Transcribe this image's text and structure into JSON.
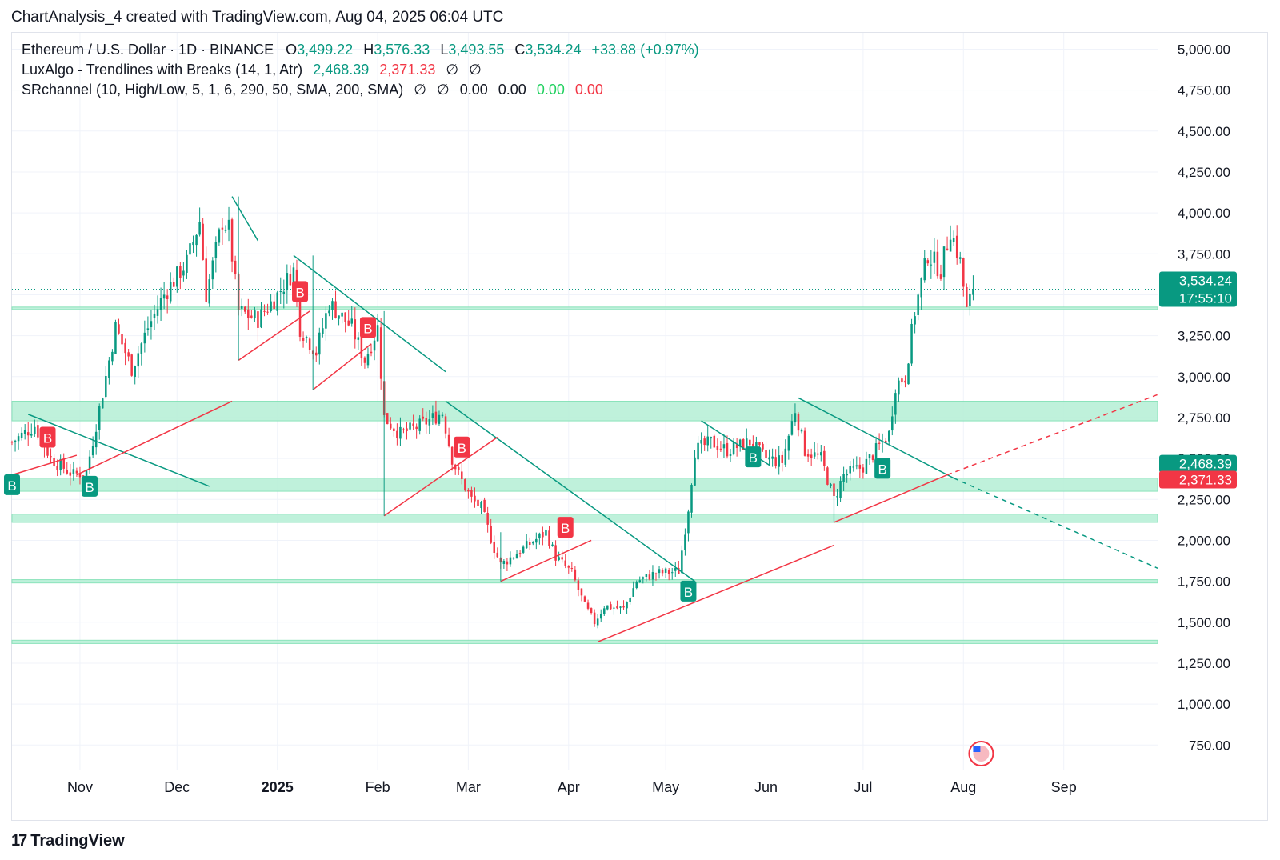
{
  "header": {
    "title": "ChartAnalysis_4 created with TradingView.com, Aug 04, 2025 06:04 UTC"
  },
  "legend": {
    "symbol": "Ethereum / U.S. Dollar · 1D · BINANCE",
    "o_label": "O",
    "o_value": "3,499.22",
    "h_label": "H",
    "h_value": "3,576.33",
    "l_label": "L",
    "l_value": "3,493.55",
    "c_label": "C",
    "c_value": "3,534.24",
    "change": "+33.88 (+0.97%)",
    "ind1_name": "LuxAlgo - Trendlines with Breaks (14, 1, Atr)",
    "ind1_v1": "2,468.39",
    "ind1_v2": "2,371.33",
    "ind1_v3": "∅",
    "ind1_v4": "∅",
    "ind2_name": "SRchannel (10, High/Low, 5, 1, 6, 290, 50, SMA, 200, SMA)",
    "ind2_v1": "∅",
    "ind2_v2": "∅",
    "ind2_v3": "0.00",
    "ind2_v4": "0.00",
    "ind2_v5": "0.00",
    "ind2_v6": "0.00"
  },
  "footer": {
    "brand": "TradingView",
    "logo_text": "17"
  },
  "colors": {
    "up": "#089981",
    "down": "#f23645",
    "zone": "#b9f0d8",
    "zone_edge": "#7fe0b4",
    "grid": "#f0f3fa",
    "axis_text": "#131722"
  },
  "chart_data": {
    "type": "candlestick",
    "symbol": "ETHUSD",
    "ylim": [
      600,
      5100
    ],
    "yticks": [
      750,
      1000,
      1250,
      1500,
      1750,
      2000,
      2250,
      2500,
      2750,
      3000,
      3250,
      3500,
      3750,
      4000,
      4250,
      4500,
      4750,
      5000
    ],
    "ytick_labels": [
      "750.00",
      "1,000.00",
      "1,250.00",
      "1,500.00",
      "1,750.00",
      "2,000.00",
      "2,250.00",
      "2,500.00",
      "2,750.00",
      "3,000.00",
      "3,250.00",
      "3,500.00",
      "3,750.00",
      "4,000.00",
      "4,250.00",
      "4,500.00",
      "4,750.00",
      "5,000.00"
    ],
    "xlim": [
      "2024-10-11",
      "2025-09-30"
    ],
    "xticks": [
      {
        "date": "2024-11-01",
        "label": "Nov",
        "bold": false
      },
      {
        "date": "2024-12-01",
        "label": "Dec",
        "bold": false
      },
      {
        "date": "2025-01-01",
        "label": "2025",
        "bold": true
      },
      {
        "date": "2025-02-01",
        "label": "Feb",
        "bold": false
      },
      {
        "date": "2025-03-01",
        "label": "Mar",
        "bold": false
      },
      {
        "date": "2025-04-01",
        "label": "Apr",
        "bold": false
      },
      {
        "date": "2025-05-01",
        "label": "May",
        "bold": false
      },
      {
        "date": "2025-06-01",
        "label": "Jun",
        "bold": false
      },
      {
        "date": "2025-07-01",
        "label": "Jul",
        "bold": false
      },
      {
        "date": "2025-08-01",
        "label": "Aug",
        "bold": false
      },
      {
        "date": "2025-09-01",
        "label": "Sep",
        "bold": false
      }
    ],
    "price_path": [
      [
        "2024-10-11",
        2600
      ],
      [
        "2024-10-18",
        2700
      ],
      [
        "2024-10-23",
        2500
      ],
      [
        "2024-10-30",
        2400
      ],
      [
        "2024-11-03",
        2420
      ],
      [
        "2024-11-08",
        2900
      ],
      [
        "2024-11-12",
        3300
      ],
      [
        "2024-11-17",
        3050
      ],
      [
        "2024-11-22",
        3300
      ],
      [
        "2024-11-27",
        3500
      ],
      [
        "2024-12-04",
        3700
      ],
      [
        "2024-12-08",
        3950
      ],
      [
        "2024-12-10",
        3500
      ],
      [
        "2024-12-15",
        3950
      ],
      [
        "2024-12-17",
        3900
      ],
      [
        "2024-12-20",
        3400
      ],
      [
        "2024-12-26",
        3350
      ],
      [
        "2025-01-01",
        3500
      ],
      [
        "2025-01-06",
        3650
      ],
      [
        "2025-01-08",
        3300
      ],
      [
        "2025-01-13",
        3150
      ],
      [
        "2025-01-17",
        3450
      ],
      [
        "2025-01-24",
        3300
      ],
      [
        "2025-01-28",
        3100
      ],
      [
        "2025-02-01",
        3300
      ],
      [
        "2025-02-03",
        2750
      ],
      [
        "2025-02-08",
        2650
      ],
      [
        "2025-02-14",
        2700
      ],
      [
        "2025-02-21",
        2780
      ],
      [
        "2025-02-24",
        2500
      ],
      [
        "2025-02-26",
        2400
      ],
      [
        "2025-03-02",
        2250
      ],
      [
        "2025-03-05",
        2200
      ],
      [
        "2025-03-09",
        1950
      ],
      [
        "2025-03-11",
        1850
      ],
      [
        "2025-03-18",
        1950
      ],
      [
        "2025-03-25",
        2050
      ],
      [
        "2025-03-28",
        1900
      ],
      [
        "2025-04-02",
        1800
      ],
      [
        "2025-04-06",
        1600
      ],
      [
        "2025-04-09",
        1500
      ],
      [
        "2025-04-12",
        1600
      ],
      [
        "2025-04-18",
        1580
      ],
      [
        "2025-04-22",
        1750
      ],
      [
        "2025-04-28",
        1800
      ],
      [
        "2025-05-05",
        1810
      ],
      [
        "2025-05-08",
        2200
      ],
      [
        "2025-05-10",
        2550
      ],
      [
        "2025-05-15",
        2600
      ],
      [
        "2025-05-20",
        2550
      ],
      [
        "2025-05-27",
        2600
      ],
      [
        "2025-06-01",
        2500
      ],
      [
        "2025-06-06",
        2480
      ],
      [
        "2025-06-10",
        2800
      ],
      [
        "2025-06-13",
        2550
      ],
      [
        "2025-06-18",
        2500
      ],
      [
        "2025-06-22",
        2250
      ],
      [
        "2025-06-25",
        2400
      ],
      [
        "2025-07-01",
        2450
      ],
      [
        "2025-07-05",
        2550
      ],
      [
        "2025-07-09",
        2650
      ],
      [
        "2025-07-11",
        2950
      ],
      [
        "2025-07-14",
        3000
      ],
      [
        "2025-07-17",
        3400
      ],
      [
        "2025-07-21",
        3750
      ],
      [
        "2025-07-25",
        3650
      ],
      [
        "2025-07-28",
        3900
      ],
      [
        "2025-07-31",
        3700
      ],
      [
        "2025-08-02",
        3400
      ],
      [
        "2025-08-04",
        3534
      ]
    ],
    "sr_zones": [
      {
        "low": 2730,
        "high": 2850
      },
      {
        "low": 2300,
        "high": 2380
      },
      {
        "low": 2110,
        "high": 2160
      },
      {
        "low": 1740,
        "high": 1760
      },
      {
        "low": 1370,
        "high": 1390
      },
      {
        "low": 3410,
        "high": 3425
      }
    ],
    "trendlines": [
      {
        "color": "down_line",
        "from": [
          "2024-10-16",
          2770
        ],
        "to": [
          "2024-12-11",
          2330
        ],
        "dashed": false
      },
      {
        "color": "down_line",
        "from": [
          "2024-12-18",
          4100
        ],
        "to": [
          "2024-12-26",
          3830
        ],
        "dashed": false
      },
      {
        "color": "down_line",
        "from": [
          "2025-01-06",
          3740
        ],
        "to": [
          "2025-02-22",
          3030
        ],
        "dashed": false
      },
      {
        "color": "down_line",
        "from": [
          "2025-02-22",
          2850
        ],
        "to": [
          "2025-05-10",
          1750
        ],
        "dashed": false
      },
      {
        "color": "down_line",
        "from": [
          "2025-05-12",
          2730
        ],
        "to": [
          "2025-06-02",
          2460
        ],
        "dashed": false
      },
      {
        "color": "down_line",
        "from": [
          "2025-06-11",
          2870
        ],
        "to": [
          "2025-07-29",
          2380
        ],
        "dashed": false
      },
      {
        "color": "down_line",
        "from": [
          "2025-07-29",
          2380
        ],
        "to": [
          "2025-09-30",
          1830
        ],
        "dashed": true
      },
      {
        "color": "up_line",
        "from": [
          "2024-10-11",
          2400
        ],
        "to": [
          "2024-10-31",
          2520
        ],
        "dashed": false
      },
      {
        "color": "up_line",
        "from": [
          "2024-10-31",
          2400
        ],
        "to": [
          "2024-12-18",
          2850
        ],
        "dashed": false
      },
      {
        "color": "up_line",
        "from": [
          "2024-12-20",
          3100
        ],
        "to": [
          "2025-01-11",
          3400
        ],
        "dashed": false
      },
      {
        "color": "up_line",
        "from": [
          "2025-01-12",
          2920
        ],
        "to": [
          "2025-01-30",
          3200
        ],
        "dashed": false
      },
      {
        "color": "up_line",
        "from": [
          "2025-02-03",
          2150
        ],
        "to": [
          "2025-03-10",
          2630
        ],
        "dashed": false
      },
      {
        "color": "up_line",
        "from": [
          "2025-03-11",
          1750
        ],
        "to": [
          "2025-04-08",
          2000
        ],
        "dashed": false
      },
      {
        "color": "up_line",
        "from": [
          "2025-04-10",
          1380
        ],
        "to": [
          "2025-06-22",
          1970
        ],
        "dashed": false
      },
      {
        "color": "up_line",
        "from": [
          "2025-06-22",
          2110
        ],
        "to": [
          "2025-07-27",
          2400
        ],
        "dashed": false
      },
      {
        "color": "up_line",
        "from": [
          "2025-07-27",
          2400
        ],
        "to": [
          "2025-09-30",
          2890
        ],
        "dashed": true
      }
    ],
    "pivot_verticals": [
      {
        "date": "2024-12-20",
        "top": 4100,
        "bottom": 3100
      },
      {
        "date": "2025-01-12",
        "top": 3740,
        "bottom": 2920
      },
      {
        "date": "2025-02-03",
        "top": 3400,
        "bottom": 2150
      },
      {
        "date": "2025-03-11",
        "top": 2050,
        "bottom": 1750
      },
      {
        "date": "2025-06-22",
        "top": 2300,
        "bottom": 2110
      }
    ],
    "break_markers": [
      {
        "date": "2024-10-11",
        "price": 2340,
        "label": "B",
        "kind": "up"
      },
      {
        "date": "2024-10-22",
        "price": 2630,
        "label": "B",
        "kind": "down"
      },
      {
        "date": "2024-11-04",
        "price": 2330,
        "label": "B",
        "kind": "up"
      },
      {
        "date": "2025-01-08",
        "price": 3520,
        "label": "B",
        "kind": "down"
      },
      {
        "date": "2025-01-29",
        "price": 3300,
        "label": "B",
        "kind": "down"
      },
      {
        "date": "2025-02-27",
        "price": 2570,
        "label": "B",
        "kind": "down"
      },
      {
        "date": "2025-03-31",
        "price": 2080,
        "label": "B",
        "kind": "down"
      },
      {
        "date": "2025-05-08",
        "price": 1690,
        "label": "B",
        "kind": "up"
      },
      {
        "date": "2025-05-28",
        "price": 2510,
        "label": "B",
        "kind": "up"
      },
      {
        "date": "2025-07-07",
        "price": 2440,
        "label": "B",
        "kind": "up"
      }
    ],
    "price_labels": [
      {
        "price": 3534.24,
        "text": "3,534.24",
        "sub": "17:55:10",
        "bg": "#089981"
      },
      {
        "price": 2468.39,
        "text": "2,468.39",
        "sub": "",
        "bg": "#089981"
      },
      {
        "price": 2371.33,
        "text": "2,371.33",
        "sub": "",
        "bg": "#f23645"
      }
    ],
    "current_price_line": 3534,
    "events_icon_date": "2025-08-04"
  }
}
